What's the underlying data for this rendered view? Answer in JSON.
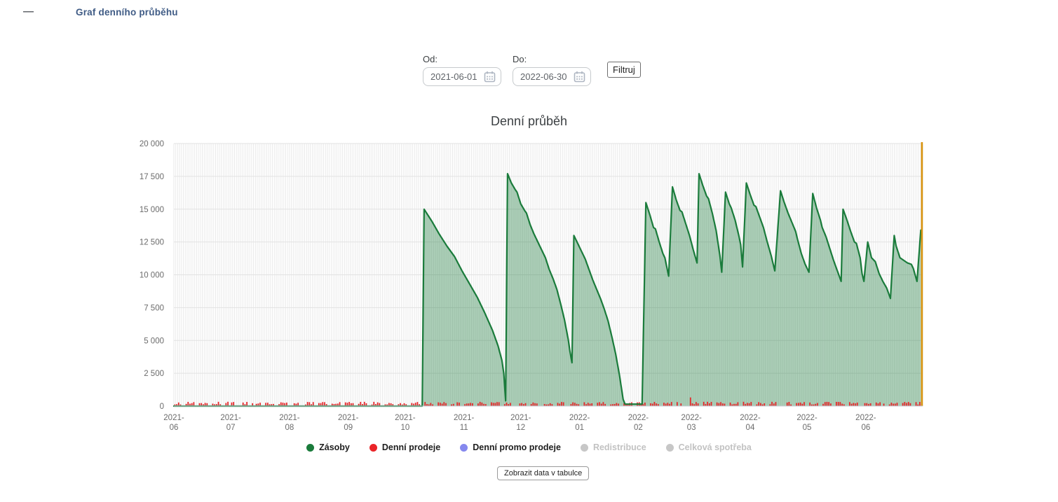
{
  "header": {
    "collapse_icon": "—",
    "title": "Graf denního průběhu"
  },
  "filters": {
    "from": {
      "label": "Od:",
      "value": "2021-06-01"
    },
    "to": {
      "label": "Do:",
      "value": "2022-06-30"
    },
    "submit_label": "Filtruj"
  },
  "chart_data": {
    "type": "area",
    "title": "Denní průběh",
    "x_range": [
      "2021-06-01",
      "2022-06-30"
    ],
    "total_days": 395,
    "ylim": [
      0,
      20000
    ],
    "y_tick_values": [
      0,
      2500,
      5000,
      7500,
      10000,
      12500,
      15000,
      17500,
      20000
    ],
    "y_tick_labels": [
      "0",
      "2 500",
      "5 000",
      "7 500",
      "10 000",
      "12 500",
      "15 000",
      "17 500",
      "20 000"
    ],
    "x_ticks": [
      {
        "day": 0,
        "line1": "2021-",
        "line2": "06"
      },
      {
        "day": 30,
        "line1": "2021-",
        "line2": "07"
      },
      {
        "day": 61,
        "line1": "2021-",
        "line2": "08"
      },
      {
        "day": 92,
        "line1": "2021-",
        "line2": "09"
      },
      {
        "day": 122,
        "line1": "2021-",
        "line2": "10"
      },
      {
        "day": 153,
        "line1": "2021-",
        "line2": "11"
      },
      {
        "day": 183,
        "line1": "2021-",
        "line2": "12"
      },
      {
        "day": 214,
        "line1": "2022-",
        "line2": "01"
      },
      {
        "day": 245,
        "line1": "2022-",
        "line2": "02"
      },
      {
        "day": 273,
        "line1": "2022-",
        "line2": "03"
      },
      {
        "day": 304,
        "line1": "2022-",
        "line2": "04"
      },
      {
        "day": 334,
        "line1": "2022-",
        "line2": "05"
      },
      {
        "day": 365,
        "line1": "2022-",
        "line2": "06"
      }
    ],
    "grid": {
      "vertical_daily": true,
      "v_color": "#e8e8e8",
      "h_color": "#e2e2e2",
      "axis_color": "#c9ced8"
    },
    "series": [
      {
        "name": "Zásoby",
        "type": "area",
        "line_color": "#1a7b3b",
        "fill_color": "rgba(26,123,59,0.36)",
        "breakpoints": [
          [
            0,
            0
          ],
          [
            131,
            0
          ],
          [
            132,
            15000
          ],
          [
            136,
            14100
          ],
          [
            140,
            13100
          ],
          [
            144,
            12200
          ],
          [
            148,
            11400
          ],
          [
            152,
            10300
          ],
          [
            156,
            9300
          ],
          [
            160,
            8300
          ],
          [
            164,
            7100
          ],
          [
            168,
            5800
          ],
          [
            171,
            4600
          ],
          [
            173,
            3500
          ],
          [
            174,
            2500
          ],
          [
            175,
            400
          ],
          [
            176,
            17700
          ],
          [
            178,
            17000
          ],
          [
            180,
            16500
          ],
          [
            181,
            16300
          ],
          [
            183,
            15400
          ],
          [
            185,
            14900
          ],
          [
            186,
            14700
          ],
          [
            188,
            13800
          ],
          [
            190,
            13100
          ],
          [
            192,
            12500
          ],
          [
            194,
            11900
          ],
          [
            196,
            11300
          ],
          [
            198,
            10400
          ],
          [
            200,
            9700
          ],
          [
            202,
            8900
          ],
          [
            204,
            7800
          ],
          [
            206,
            6600
          ],
          [
            208,
            5100
          ],
          [
            209,
            4100
          ],
          [
            210,
            3300
          ],
          [
            211,
            13000
          ],
          [
            213,
            12400
          ],
          [
            215,
            11800
          ],
          [
            217,
            11200
          ],
          [
            219,
            10400
          ],
          [
            221,
            9600
          ],
          [
            223,
            8900
          ],
          [
            225,
            8200
          ],
          [
            227,
            7400
          ],
          [
            229,
            6500
          ],
          [
            231,
            5300
          ],
          [
            233,
            4000
          ],
          [
            235,
            2400
          ],
          [
            237,
            500
          ],
          [
            238,
            150
          ],
          [
            247,
            150
          ],
          [
            249,
            15500
          ],
          [
            251,
            14600
          ],
          [
            253,
            13600
          ],
          [
            254,
            13500
          ],
          [
            256,
            12500
          ],
          [
            258,
            11600
          ],
          [
            259,
            11300
          ],
          [
            261,
            9900
          ],
          [
            263,
            16700
          ],
          [
            265,
            15700
          ],
          [
            267,
            14900
          ],
          [
            268,
            14800
          ],
          [
            270,
            13900
          ],
          [
            272,
            13000
          ],
          [
            274,
            11900
          ],
          [
            276,
            10900
          ],
          [
            277,
            17700
          ],
          [
            279,
            16800
          ],
          [
            281,
            16000
          ],
          [
            282,
            15800
          ],
          [
            284,
            14700
          ],
          [
            286,
            13400
          ],
          [
            288,
            11500
          ],
          [
            289,
            10200
          ],
          [
            291,
            16300
          ],
          [
            293,
            15400
          ],
          [
            294,
            15100
          ],
          [
            296,
            14200
          ],
          [
            298,
            13000
          ],
          [
            299,
            12300
          ],
          [
            300,
            10600
          ],
          [
            302,
            17000
          ],
          [
            304,
            16100
          ],
          [
            306,
            15300
          ],
          [
            307,
            15200
          ],
          [
            309,
            14400
          ],
          [
            311,
            13600
          ],
          [
            313,
            12500
          ],
          [
            315,
            11500
          ],
          [
            317,
            10300
          ],
          [
            320,
            16400
          ],
          [
            322,
            15500
          ],
          [
            324,
            14700
          ],
          [
            326,
            14000
          ],
          [
            328,
            13300
          ],
          [
            329,
            12700
          ],
          [
            331,
            11600
          ],
          [
            333,
            10800
          ],
          [
            335,
            10200
          ],
          [
            337,
            16200
          ],
          [
            339,
            15100
          ],
          [
            341,
            14200
          ],
          [
            342,
            13600
          ],
          [
            344,
            12900
          ],
          [
            346,
            12000
          ],
          [
            348,
            11100
          ],
          [
            350,
            10300
          ],
          [
            352,
            9500
          ],
          [
            353,
            15000
          ],
          [
            355,
            14200
          ],
          [
            357,
            13300
          ],
          [
            359,
            12500
          ],
          [
            360,
            12400
          ],
          [
            362,
            11300
          ],
          [
            363,
            10100
          ],
          [
            364,
            9500
          ],
          [
            366,
            12500
          ],
          [
            368,
            11300
          ],
          [
            370,
            11000
          ],
          [
            372,
            10100
          ],
          [
            374,
            9500
          ],
          [
            376,
            9000
          ],
          [
            378,
            8200
          ],
          [
            380,
            13000
          ],
          [
            381,
            12200
          ],
          [
            383,
            11300
          ],
          [
            385,
            11100
          ],
          [
            387,
            10900
          ],
          [
            389,
            10800
          ],
          [
            390,
            10500
          ],
          [
            392,
            9500
          ],
          [
            394,
            13400
          ]
        ]
      },
      {
        "name": "Denní prodeje",
        "type": "bar",
        "color": "#ea2428",
        "daily_pattern": {
          "weekday_base": 120,
          "weekday_span": 210,
          "weekend_value": 0,
          "start_weekday": "Tue",
          "gap_chance": 0.07,
          "zero_days": [
            34,
            35,
            206,
            207,
            208,
            214,
            318,
            321
          ],
          "spike": {
            "day": 272,
            "value": 660
          },
          "seed": 20210601
        }
      },
      {
        "name": "Denní promo prodeje",
        "type": "bar",
        "color": "#8588ee",
        "visible_values": "none"
      },
      {
        "name": "Redistribuce",
        "type": "line",
        "color": "#c7c7c7",
        "enabled": false
      },
      {
        "name": "Celková spotřeba",
        "type": "line",
        "color": "#c7c7c7",
        "enabled": false
      }
    ],
    "today_marker": {
      "day": 394.6,
      "color": "#d9930d"
    }
  },
  "legend": {
    "items": [
      {
        "label": "Zásoby",
        "color": "#1a7b3b",
        "enabled": true
      },
      {
        "label": "Denní prodeje",
        "color": "#ea2428",
        "enabled": true
      },
      {
        "label": "Denní promo prodeje",
        "color": "#8588ee",
        "enabled": true
      },
      {
        "label": "Redistribuce",
        "color": "#c7c7c7",
        "enabled": false
      },
      {
        "label": "Celková spotřeba",
        "color": "#c7c7c7",
        "enabled": false
      }
    ]
  },
  "table_button": "Zobrazit data v tabulce"
}
